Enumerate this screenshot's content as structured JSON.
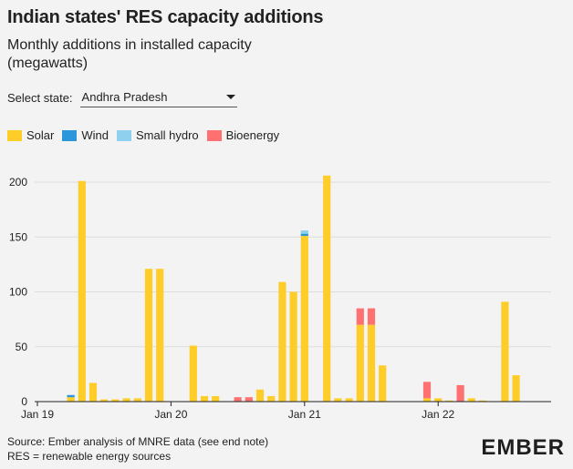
{
  "title": "Indian states' RES capacity additions",
  "subtitle": "Monthly additions in installed capacity (megawatts)",
  "selector": {
    "label": "Select state:",
    "value": "Andhra Pradesh"
  },
  "footer": {
    "source": "Source: Ember analysis of MNRE data (see end note)",
    "note": "RES = renewable energy sources"
  },
  "logo": "EMBER",
  "colors": {
    "solar": "#ffcd29",
    "wind": "#2a97db",
    "small_hydro": "#8ed0ee",
    "bioenergy": "#ff7070",
    "axis": "#222222",
    "grid": "#dddddd"
  },
  "chart_data": {
    "type": "bar",
    "stacked": true,
    "ylim": [
      0,
      210
    ],
    "y_ticks": [
      0,
      50,
      100,
      150,
      200
    ],
    "grid": true,
    "legend_position": "top-left",
    "x_tick_labels": [
      {
        "label": "Jan 19",
        "month_index": 0
      },
      {
        "label": "Jan 20",
        "month_index": 12
      },
      {
        "label": "Jan 21",
        "month_index": 24
      },
      {
        "label": "Jan 22",
        "month_index": 36
      }
    ],
    "months": [
      "2019-01",
      "2019-02",
      "2019-03",
      "2019-04",
      "2019-05",
      "2019-06",
      "2019-07",
      "2019-08",
      "2019-09",
      "2019-10",
      "2019-11",
      "2019-12",
      "2020-01",
      "2020-02",
      "2020-03",
      "2020-04",
      "2020-05",
      "2020-06",
      "2020-07",
      "2020-08",
      "2020-09",
      "2020-10",
      "2020-11",
      "2020-12",
      "2021-01",
      "2021-02",
      "2021-03",
      "2021-04",
      "2021-05",
      "2021-06",
      "2021-07",
      "2021-08",
      "2021-09",
      "2021-10",
      "2021-11",
      "2021-12",
      "2022-01",
      "2022-02",
      "2022-03",
      "2022-04",
      "2022-05",
      "2022-06",
      "2022-07",
      "2022-08",
      "2022-09"
    ],
    "series": [
      {
        "name": "Solar",
        "key": "solar",
        "values": [
          0,
          0,
          0,
          4,
          201,
          17,
          2,
          2,
          3,
          3,
          121,
          121,
          0,
          0,
          51,
          5,
          5,
          0,
          0,
          0,
          11,
          5,
          109,
          100,
          151,
          0,
          206,
          3,
          3,
          70,
          70,
          33,
          0,
          0,
          0,
          3,
          3,
          1,
          0,
          3,
          1,
          0,
          91,
          24,
          0
        ]
      },
      {
        "name": "Wind",
        "key": "wind",
        "values": [
          0,
          0,
          0,
          2,
          0,
          0,
          0,
          0,
          0,
          0,
          0,
          0,
          0,
          0,
          0,
          0,
          0,
          0,
          0,
          0,
          0,
          0,
          0,
          0,
          2,
          0,
          0,
          0,
          0,
          0,
          0,
          0,
          0,
          0,
          0,
          0,
          0,
          0,
          0,
          0,
          0,
          0,
          0,
          0,
          0
        ]
      },
      {
        "name": "Small hydro",
        "key": "small_hydro",
        "values": [
          0,
          0,
          0,
          0,
          0,
          0,
          0,
          0,
          0,
          0,
          0,
          0,
          0,
          0,
          0,
          0,
          0,
          0,
          0,
          0,
          0,
          0,
          0,
          0,
          3,
          0,
          0,
          0,
          0,
          0,
          0,
          0,
          0,
          0,
          0,
          0,
          0,
          0,
          0,
          0,
          0,
          0,
          0,
          0,
          0
        ]
      },
      {
        "name": "Bioenergy",
        "key": "bioenergy",
        "values": [
          0,
          0,
          0,
          0,
          0,
          0,
          0,
          0,
          0,
          0,
          0,
          0,
          0,
          0,
          0,
          0,
          0,
          0,
          4,
          4,
          0,
          0,
          0,
          0,
          0,
          0,
          0,
          0,
          0,
          15,
          15,
          0,
          0,
          0,
          0,
          15,
          0,
          0,
          15,
          0,
          0,
          0,
          0,
          0,
          0
        ]
      }
    ]
  }
}
